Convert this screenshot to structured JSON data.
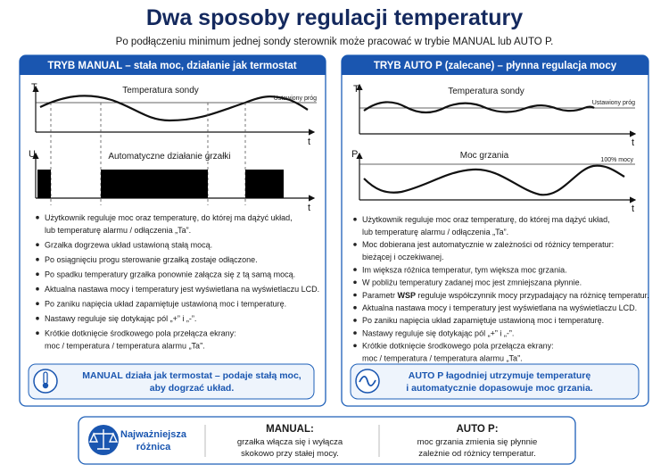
{
  "title": "Dwa sposoby regulacji temperatury",
  "subtitle": "Po podłączeniu minimum jednej sondy sterownik może pracować w trybie MANUAL lub AUTO P.",
  "panels": [
    {
      "header": "TRYB MANUAL – stała moc, działanie jak termostat",
      "graph1": {
        "y_label": "T",
        "x_label": "t",
        "title": "Temperatura sondy",
        "threshold_label": "Ustawiony próg"
      },
      "graph2": {
        "y_label": "U",
        "x_label": "t",
        "title": "Automatyczne działanie grzałki"
      },
      "bullets": [
        [
          "Użytkownik reguluje moc oraz temperaturę, do której ma dążyć układ,",
          "lub temperaturę alarmu / odłączenia „Ta”."
        ],
        [
          "Grzałka dogrzewa układ ustawioną stałą mocą."
        ],
        [
          "Po osiągnięciu progu sterowanie grzałką zostaje odłączone."
        ],
        [
          "Po spadku temperatury grzałka ponownie załącza się z tą samą mocą."
        ],
        [
          "Aktualna nastawa mocy i temperatury jest wyświetlana na wyświetlaczu LCD."
        ],
        [
          "Po zaniku napięcia układ zapamiętuje ustawioną moc i temperaturę."
        ],
        [
          "Nastawy reguluje się dotykając pól „+” i „-”."
        ],
        [
          "Krótkie dotknięcie środkowego pola przełącza ekrany:",
          "moc / temperatura / temperatura alarmu „Ta”."
        ]
      ],
      "callout": [
        "MANUAL działa jak termostat – podaje stałą moc,",
        "aby dogrzać układ."
      ]
    },
    {
      "header": "TRYB AUTO P (zalecane) – płynna regulacja mocy",
      "graph1": {
        "y_label": "T",
        "x_label": "t",
        "title": "Temperatura sondy",
        "threshold_label": "Ustawiony próg"
      },
      "graph2": {
        "y_label": "P",
        "x_label": "t",
        "title": "Moc grzania",
        "threshold_label": "100% mocy"
      },
      "bullets": [
        [
          "Użytkownik reguluje moc oraz temperaturę, do której ma dążyć układ,",
          "lub temperaturę alarmu / odłączenia „Ta”."
        ],
        [
          "Moc dobierana jest automatycznie w zależności od różnicy temperatur:",
          "bieżącej i oczekiwanej."
        ],
        [
          "Im większa różnica temperatur, tym większa moc grzania."
        ],
        [
          "W pobliżu temperatury zadanej moc jest zmniejszana płynnie."
        ],
        [
          [
            "Parametr ",
            "WSP",
            " reguluje współczynnik mocy przypadający na różnicę temperatur."
          ]
        ],
        [
          "Aktualna nastawa mocy i temperatury jest wyświetlana na wyświetlaczu LCD."
        ],
        [
          "Po zaniku napięcia układ zapamiętuje ustawioną moc i temperaturę."
        ],
        [
          "Nastawy reguluje się dotykając pól „+” i „-”."
        ],
        [
          "Krótkie dotknięcie środkowego pola przełącza ekrany:",
          "moc / temperatura / temperatura alarmu „Ta”."
        ]
      ],
      "callout": [
        "AUTO P łagodniej utrzymuje temperaturę",
        "i automatycznie dopasowuje moc grzania."
      ]
    }
  ],
  "summary": {
    "label": [
      "Najważniejsza",
      "różnica"
    ],
    "columns": [
      {
        "title": "MANUAL:",
        "lines": [
          "grzałka włącza się i wyłącza",
          "skokowo przy stałej mocy."
        ]
      },
      {
        "title": "AUTO P:",
        "lines": [
          "moc grzania zmienia się płynnie",
          "zależnie od różnicy temperatur."
        ]
      }
    ]
  }
}
